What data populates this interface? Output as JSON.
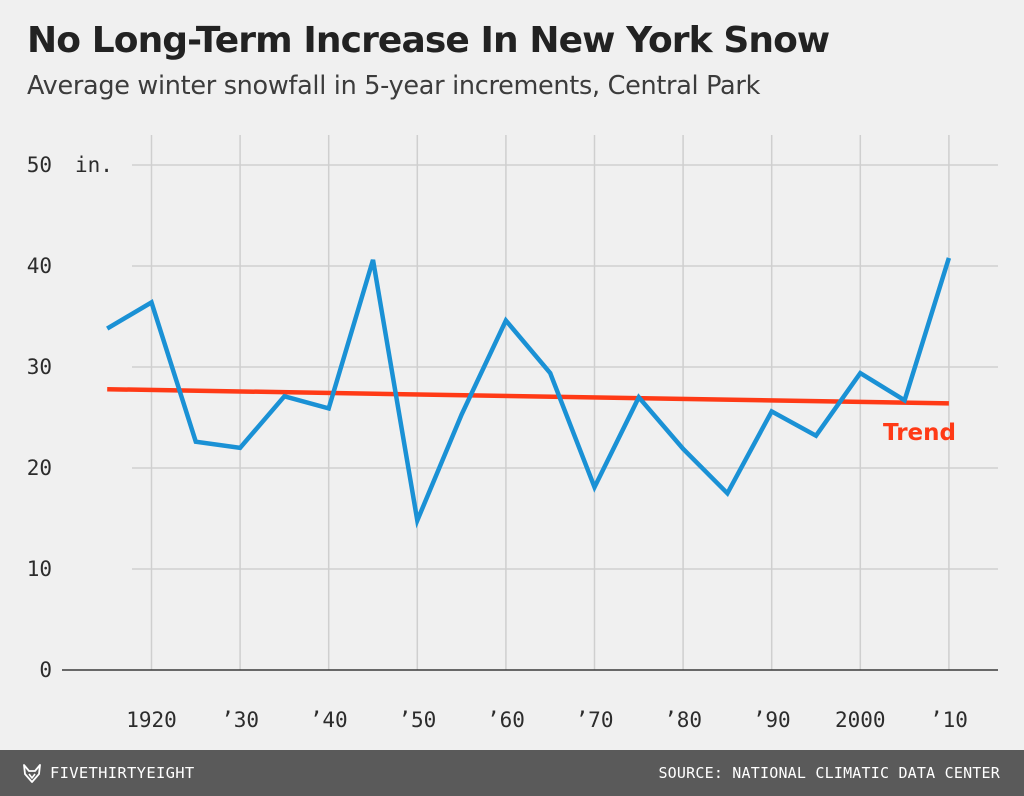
{
  "title": "No Long-Term Increase In New York Snow",
  "subtitle": "Average winter snowfall in 5-year increments, Central Park",
  "footer": {
    "brand": "FIVETHIRTYEIGHT",
    "brand_icon": "fox-logo-icon",
    "source": "SOURCE: NATIONAL CLIMATIC DATA CENTER"
  },
  "colors": {
    "series": "#1a91d5",
    "trend": "#ff3a16",
    "grid": "#cfcfcf",
    "axis_text": "#2c2c2c",
    "background": "#f0f0f0",
    "footer": "#5a5a5a"
  },
  "chart_data": {
    "type": "line",
    "title": "No Long-Term Increase In New York Snow",
    "subtitle": "Average winter snowfall in 5-year increments, Central Park",
    "unit_label": "in.",
    "ylim": [
      0,
      50
    ],
    "yticks": [
      0,
      10,
      20,
      30,
      40,
      50
    ],
    "ytick_labels": [
      "0",
      "10",
      "20",
      "30",
      "40",
      "50"
    ],
    "xlim": [
      1910,
      2015
    ],
    "xticks": [
      1920,
      1930,
      1940,
      1950,
      1960,
      1970,
      1980,
      1990,
      2000,
      2010
    ],
    "xtick_labels": [
      "1920",
      "’30",
      "’40",
      "’50",
      "’60",
      "’70",
      "’80",
      "’90",
      "2000",
      "’10"
    ],
    "grid": true,
    "series": [
      {
        "x": [
          1915,
          1920,
          1925,
          1930,
          1935,
          1940,
          1945,
          1950,
          1955,
          1960,
          1965,
          1970,
          1975,
          1980,
          1985,
          1990,
          1995,
          2000,
          2005,
          2010
        ],
        "values": [
          33.8,
          36.4,
          22.6,
          22.0,
          27.1,
          25.9,
          40.6,
          14.8,
          25.3,
          34.6,
          29.4,
          18.1,
          27.0,
          21.9,
          17.5,
          25.6,
          23.2,
          29.4,
          26.7,
          40.8
        ]
      }
    ],
    "trend": {
      "name": "Trend",
      "x": [
        1915,
        2010
      ],
      "values": [
        27.8,
        26.4
      ]
    }
  }
}
